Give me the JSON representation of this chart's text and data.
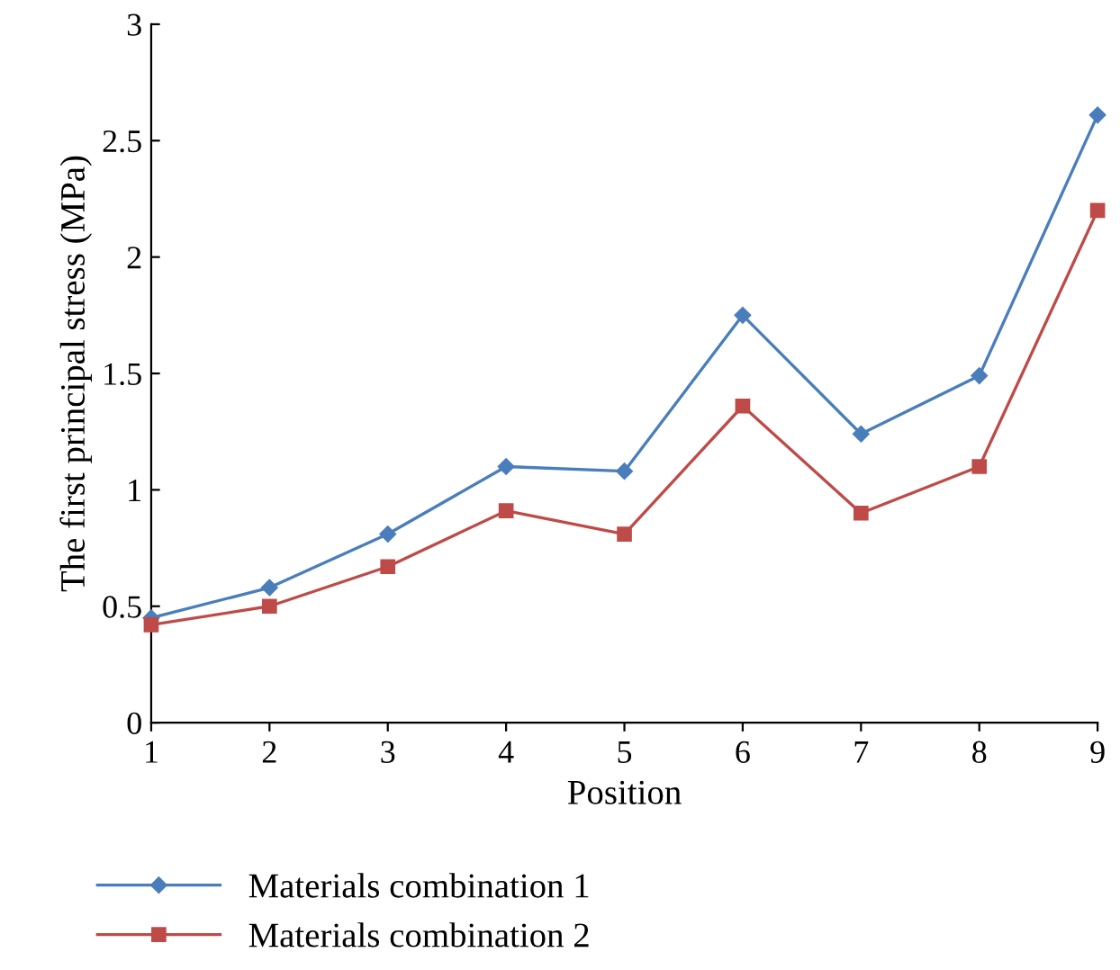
{
  "chart_data": {
    "type": "line",
    "xlabel": "Position",
    "ylabel": "The first principal stress (MPa)",
    "x": [
      1,
      2,
      3,
      4,
      5,
      6,
      7,
      8,
      9
    ],
    "xlim": [
      1,
      9
    ],
    "xticks": [
      1,
      2,
      3,
      4,
      5,
      6,
      7,
      8,
      9
    ],
    "ylim": [
      0,
      3
    ],
    "yticks": [
      0,
      0.5,
      1,
      1.5,
      2,
      2.5,
      3
    ],
    "grid": false,
    "legend": "bottom",
    "line_style": "solid",
    "series": [
      {
        "name": "Materials combination 1",
        "color": "#4a7ebb",
        "marker": "diamond",
        "values": [
          0.45,
          0.58,
          0.81,
          1.1,
          1.08,
          1.75,
          1.24,
          1.49,
          2.61
        ]
      },
      {
        "name": "Materials combination 2",
        "color": "#be4b48",
        "marker": "square",
        "values": [
          0.42,
          0.5,
          0.67,
          0.91,
          0.81,
          1.36,
          0.9,
          1.1,
          2.2
        ]
      }
    ]
  }
}
